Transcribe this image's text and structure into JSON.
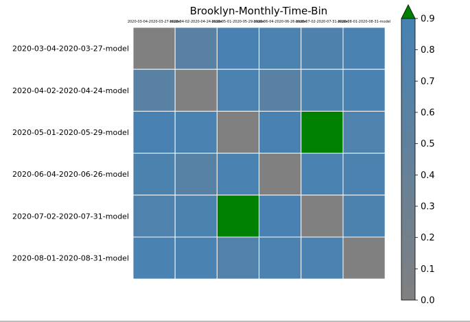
{
  "chart_data": {
    "type": "heatmap",
    "title": "Brooklyn-Monthly-Time-Bin",
    "column_labels": [
      "2020-03-04-2020-03-27-model",
      "2020-04-02-2020-04-24-model",
      "2020-05-01-2020-05-29-model",
      "2020-06-04-2020-06-26-model",
      "2020-07-02-2020-07-31-model",
      "2020-08-01-2020-08-31-model"
    ],
    "row_labels": [
      "2020-03-04-2020-03-27-model",
      "2020-04-02-2020-04-24-model",
      "2020-05-01-2020-05-29-model",
      "2020-06-04-2020-06-26-model",
      "2020-07-02-2020-07-31-model",
      "2020-08-01-2020-08-31-model"
    ],
    "values": [
      [
        0.0,
        0.62,
        0.86,
        0.82,
        0.78,
        0.84
      ],
      [
        0.62,
        0.0,
        0.82,
        0.62,
        0.8,
        0.84
      ],
      [
        0.86,
        0.84,
        0.0,
        0.86,
        0.95,
        0.76
      ],
      [
        0.8,
        0.64,
        0.84,
        0.0,
        0.84,
        0.82
      ],
      [
        0.76,
        0.8,
        0.95,
        0.86,
        0.0,
        0.8
      ],
      [
        0.84,
        0.84,
        0.74,
        0.82,
        0.82,
        0.0
      ]
    ],
    "colorbar": {
      "min": 0.0,
      "max": 0.9,
      "ticks": [
        "0.0",
        "0.1",
        "0.2",
        "0.3",
        "0.4",
        "0.5",
        "0.6",
        "0.7",
        "0.8",
        "0.9"
      ],
      "low_color": "#808080",
      "high_color": "#4682b4",
      "over_color": "#008000",
      "extend": "max"
    },
    "diagonal_color": "#808080",
    "cell_border_color": "#ffffff"
  }
}
